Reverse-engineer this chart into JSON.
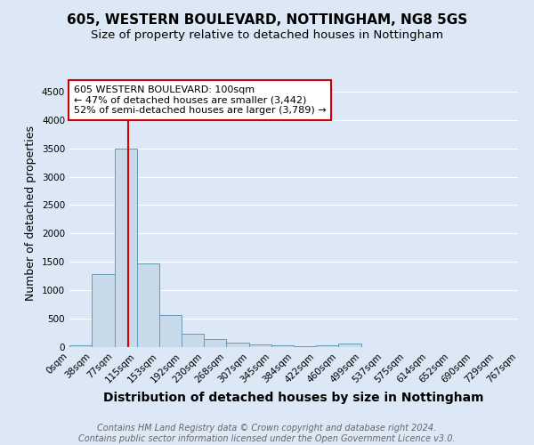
{
  "title": "605, WESTERN BOULEVARD, NOTTINGHAM, NG8 5GS",
  "subtitle": "Size of property relative to detached houses in Nottingham",
  "xlabel": "Distribution of detached houses by size in Nottingham",
  "ylabel": "Number of detached properties",
  "bin_labels": [
    "0sqm",
    "38sqm",
    "77sqm",
    "115sqm",
    "153sqm",
    "192sqm",
    "230sqm",
    "268sqm",
    "307sqm",
    "345sqm",
    "384sqm",
    "422sqm",
    "460sqm",
    "499sqm",
    "537sqm",
    "575sqm",
    "614sqm",
    "652sqm",
    "690sqm",
    "729sqm",
    "767sqm"
  ],
  "bin_edges": [
    0,
    38,
    77,
    115,
    153,
    192,
    230,
    268,
    307,
    345,
    384,
    422,
    460,
    499,
    537,
    575,
    614,
    652,
    690,
    729,
    767
  ],
  "bar_heights": [
    30,
    1280,
    3500,
    1480,
    570,
    240,
    135,
    80,
    40,
    30,
    20,
    30,
    55,
    0,
    0,
    0,
    0,
    0,
    0,
    0
  ],
  "bar_color": "#c8d9ea",
  "bar_edge_color": "#6699bb",
  "property_size": 100,
  "property_label": "605 WESTERN BOULEVARD: 100sqm",
  "pct_smaller": 47,
  "n_smaller": 3442,
  "pct_larger": 52,
  "n_larger": 3789,
  "vline_color": "#dd0000",
  "annotation_box_color": "#ffffff",
  "annotation_box_edge": "#cc0000",
  "ylim": [
    0,
    4700
  ],
  "yticks": [
    0,
    500,
    1000,
    1500,
    2000,
    2500,
    3000,
    3500,
    4000,
    4500
  ],
  "bg_color": "#dce8f5",
  "grid_color": "#ffffff",
  "footer_text": "Contains HM Land Registry data © Crown copyright and database right 2024.\nContains public sector information licensed under the Open Government Licence v3.0.",
  "title_fontsize": 11,
  "subtitle_fontsize": 9.5,
  "axis_label_fontsize": 9,
  "tick_fontsize": 7.5,
  "annotation_fontsize": 8,
  "footer_fontsize": 7
}
